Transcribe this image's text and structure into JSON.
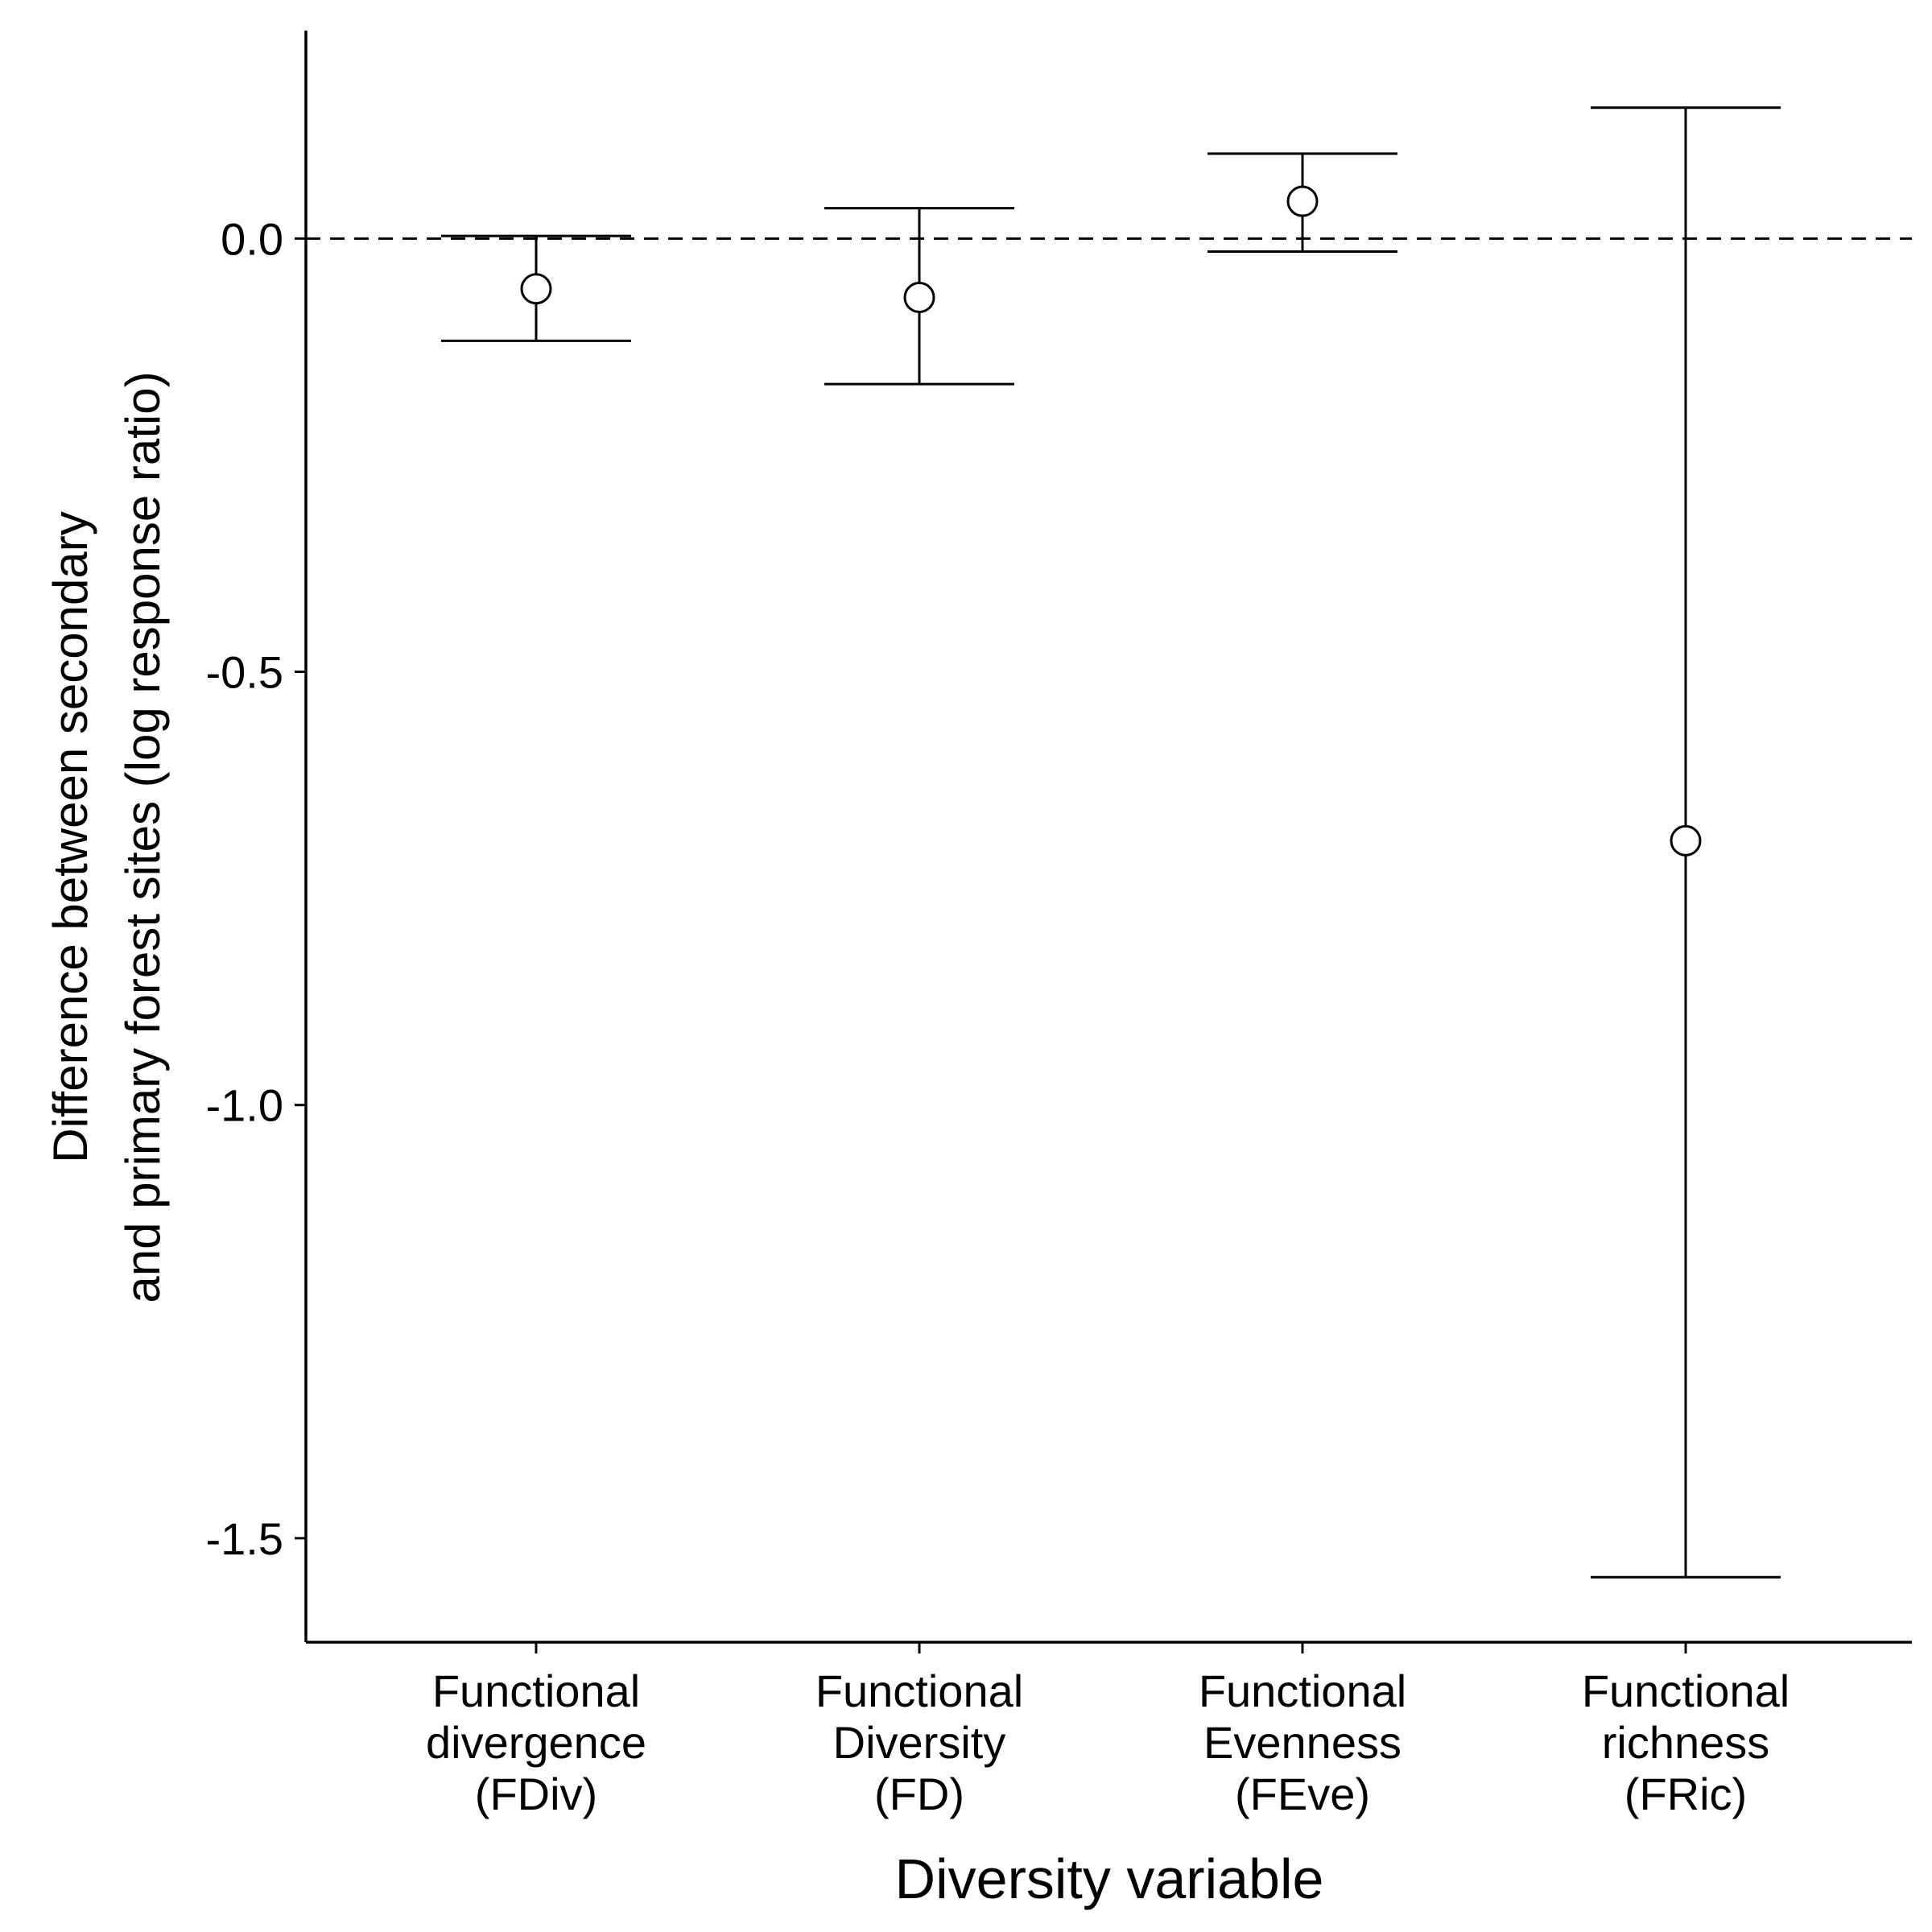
{
  "chart_data": {
    "type": "scatter",
    "xlabel": "Diversity variable",
    "ylabel_lines": [
      "Difference between secondary",
      "and primary forest sites (log response ratio)"
    ],
    "categories": [
      [
        "Functional",
        "divergence",
        "(FDiv)"
      ],
      [
        "Functional",
        "Diversity",
        "(FD)"
      ],
      [
        "Functional",
        "Evenness",
        "(FEve)"
      ],
      [
        "Functional",
        "richness",
        "(FRic)"
      ]
    ],
    "y_ticks": [
      0.0,
      -0.5,
      -1.0,
      -1.5
    ],
    "y_tick_labels": [
      "0.0",
      "-0.5",
      "-1.0",
      "-1.5"
    ],
    "ylim": [
      -1.62,
      0.24
    ],
    "reference_line": 0.0,
    "points": [
      {
        "estimate": -0.058,
        "lower": -0.118,
        "upper": 0.003
      },
      {
        "estimate": -0.068,
        "lower": -0.168,
        "upper": 0.035
      },
      {
        "estimate": 0.043,
        "lower": -0.015,
        "upper": 0.098
      },
      {
        "estimate": -0.695,
        "lower": -1.545,
        "upper": 0.151
      }
    ],
    "grid": false,
    "legend": "none"
  }
}
